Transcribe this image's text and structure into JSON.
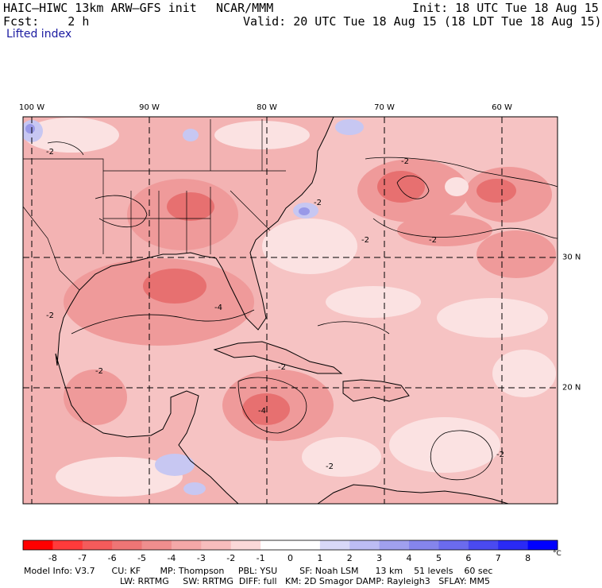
{
  "header": {
    "model_title": "HAIC–HIWC 13km ARW–GFS init",
    "org": "NCAR/MMM",
    "init": "Init: 18 UTC Tue 18 Aug 15",
    "fcst": "Fcst:    2 h",
    "valid": "Valid: 20 UTC Tue 18 Aug 15 (18 LDT Tue 18 Aug 15)",
    "field": "Lifted index"
  },
  "map": {
    "longitude_labels": [
      "100 W",
      "90 W",
      "80 W",
      "70 W",
      "60 W"
    ],
    "latitude_labels": [
      "30 N",
      "20 N"
    ],
    "contour_labels": [
      "-2",
      "-2",
      "-2",
      "-2",
      "-4",
      "-2",
      "-2",
      "-4",
      "-2",
      "-2",
      "-2",
      "-2"
    ],
    "colors": {
      "ocean_base": "#f6c3c3",
      "land_base": "#f3b3b3",
      "strong": "#e77070",
      "moderate": "#ef9a9a",
      "weak": "#fbe2e2",
      "neutral": "#ffffff",
      "stable": "#c7c7f2",
      "stable_strong": "#9999e8"
    }
  },
  "scale": {
    "values": [
      "-8",
      "-7",
      "-6",
      "-5",
      "-4",
      "-3",
      "-2",
      "-1",
      "0",
      "1",
      "2",
      "3",
      "4",
      "5",
      "6",
      "7",
      "8"
    ],
    "unit": "°C",
    "colors": [
      "#ff0000",
      "#ff3b3b",
      "#f45b5b",
      "#ee7575",
      "#ef8e8e",
      "#f4a8a8",
      "#f7bdbd",
      "#fbd8d8",
      "#ffffff",
      "#ffffff",
      "#d8d8f8",
      "#bdbdf4",
      "#a0a0ee",
      "#8585ec",
      "#6b6bee",
      "#4a4af0",
      "#2a2af5",
      "#0000ff"
    ]
  },
  "footer": {
    "line1": "Model Info: V3.7      CU: KF       MP: Thompson     PBL: YSU        SF: Noah LSM      13 km    51 levels    60 sec",
    "line2": "LW: RRTMG     SW: RRTMG  DIFF: full   KM: 2D Smagor DAMP: Rayleigh3   SFLAY: MM5"
  }
}
